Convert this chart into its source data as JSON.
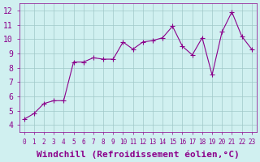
{
  "x": [
    0,
    1,
    2,
    3,
    4,
    5,
    6,
    7,
    8,
    9,
    10,
    11,
    12,
    13,
    14,
    15,
    16,
    17,
    18,
    19,
    20,
    21,
    22,
    23
  ],
  "y": [
    4.4,
    4.8,
    5.5,
    5.7,
    5.7,
    8.4,
    8.4,
    8.7,
    8.6,
    8.6,
    9.8,
    9.3,
    9.8,
    9.9,
    10.1,
    10.9,
    9.5,
    8.9,
    10.1,
    7.5,
    10.5,
    11.9,
    10.2,
    9.3
  ],
  "line_color": "#8B008B",
  "marker": "+",
  "background_color": "#d0f0f0",
  "grid_color": "#a0c8c8",
  "xlabel": "Windchill (Refroidissement éolien,°C)",
  "ylabel": "",
  "title": "",
  "xlim": [
    -0.5,
    23.5
  ],
  "ylim": [
    3.5,
    12.5
  ],
  "yticks": [
    4,
    5,
    6,
    7,
    8,
    9,
    10,
    11,
    12
  ],
  "xticks": [
    0,
    1,
    2,
    3,
    4,
    5,
    6,
    7,
    8,
    9,
    10,
    11,
    12,
    13,
    14,
    15,
    16,
    17,
    18,
    19,
    20,
    21,
    22,
    23
  ],
  "tick_color": "#8B008B",
  "xlabel_fontsize": 8,
  "tick_fontsize": 7,
  "label_font": "monospace"
}
